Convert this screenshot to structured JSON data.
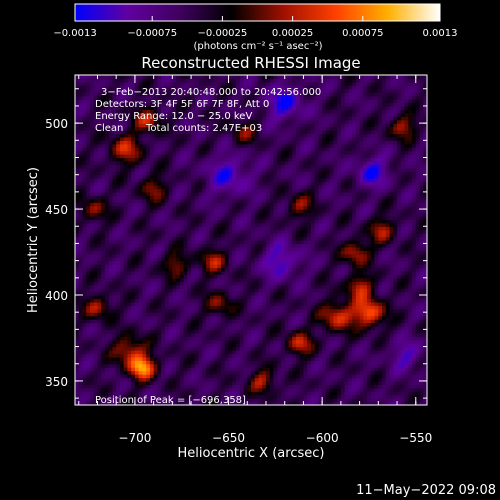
{
  "chart_data": {
    "type": "heatmap",
    "title": "Reconstructed RHESSI Image",
    "xlabel": "Heliocentric X (arcsec)",
    "ylabel": "Heliocentric Y (arcsec)",
    "xlim": [
      -732,
      -544
    ],
    "ylim": [
      336,
      528
    ],
    "x_ticks": [
      -700,
      -650,
      -600,
      -550
    ],
    "x_tick_labels": [
      "−700",
      "−650",
      "−600",
      "−550"
    ],
    "y_ticks": [
      350,
      400,
      450,
      500
    ],
    "y_tick_labels": [
      "350",
      "400",
      "450",
      "500"
    ],
    "colorbar": {
      "range": [
        -0.0013,
        0.0013
      ],
      "colors": [
        "#0000ff",
        "#6000a0",
        "#400060",
        "#000000",
        "#a01000",
        "#ff4000",
        "#ffb000",
        "#ffffff"
      ],
      "tick_values": [
        -0.0013,
        -0.00075,
        -0.00025,
        0.00025,
        0.00075,
        0.0013
      ],
      "tick_labels": [
        "−0.0013",
        "−0.00075",
        "−0.00025",
        "0.00025",
        "0.00075",
        "0.0013"
      ],
      "unit_label": "(photons cm⁻² s⁻¹ asec⁻²)"
    },
    "sources": [
      {
        "x": -696,
        "y": 358,
        "amplitude": 0.0013,
        "sigma": 5
      },
      {
        "x": -703,
        "y": 368,
        "amplitude": 0.0008,
        "sigma": 6
      },
      {
        "x": -575,
        "y": 390,
        "amplitude": 0.0011,
        "sigma": 6
      },
      {
        "x": -592,
        "y": 388,
        "amplitude": 0.0009,
        "sigma": 6
      },
      {
        "x": -580,
        "y": 405,
        "amplitude": 0.0008,
        "sigma": 5
      },
      {
        "x": -582,
        "y": 425,
        "amplitude": 0.0008,
        "sigma": 5
      },
      {
        "x": -568,
        "y": 438,
        "amplitude": 0.0007,
        "sigma": 5
      },
      {
        "x": -612,
        "y": 372,
        "amplitude": 0.0008,
        "sigma": 5
      },
      {
        "x": -632,
        "y": 350,
        "amplitude": 0.0007,
        "sigma": 5
      },
      {
        "x": -705,
        "y": 485,
        "amplitude": 0.0008,
        "sigma": 6
      },
      {
        "x": -693,
        "y": 502,
        "amplitude": 0.0008,
        "sigma": 5
      },
      {
        "x": -690,
        "y": 462,
        "amplitude": 0.0006,
        "sigma": 5
      },
      {
        "x": -658,
        "y": 420,
        "amplitude": 0.0007,
        "sigma": 5
      },
      {
        "x": -655,
        "y": 395,
        "amplitude": 0.0006,
        "sigma": 5
      },
      {
        "x": -720,
        "y": 393,
        "amplitude": 0.0007,
        "sigma": 5
      },
      {
        "x": -722,
        "y": 450,
        "amplitude": 0.0006,
        "sigma": 5
      },
      {
        "x": -557,
        "y": 498,
        "amplitude": 0.0007,
        "sigma": 5
      },
      {
        "x": -612,
        "y": 452,
        "amplitude": 0.0006,
        "sigma": 5
      },
      {
        "x": -642,
        "y": 495,
        "amplitude": 0.0005,
        "sigma": 5
      },
      {
        "x": -678,
        "y": 418,
        "amplitude": 0.0006,
        "sigma": 5
      },
      {
        "x": -620,
        "y": 512,
        "amplitude": -0.0007,
        "sigma": 7
      },
      {
        "x": -650,
        "y": 470,
        "amplitude": -0.0006,
        "sigma": 8
      },
      {
        "x": -573,
        "y": 472,
        "amplitude": -0.0007,
        "sigma": 6
      },
      {
        "x": -622,
        "y": 420,
        "amplitude": -0.0006,
        "sigma": 7
      },
      {
        "x": -555,
        "y": 365,
        "amplitude": -0.0005,
        "sigma": 6
      }
    ]
  },
  "info": {
    "time_range": "3−Feb−2013 20:40:48.000 to 20:42:56.000",
    "detectors": "Detectors: 3F 4F 5F 6F 7F 8F, Att 0",
    "energy": "Energy Range: 12.0 − 25.0 keV",
    "method": "Clean",
    "counts": "Total counts: 2.47E+03",
    "peak": "Position of Peak = [−696,358]"
  },
  "footer": {
    "timestamp": "11−May−2022 09:08"
  }
}
